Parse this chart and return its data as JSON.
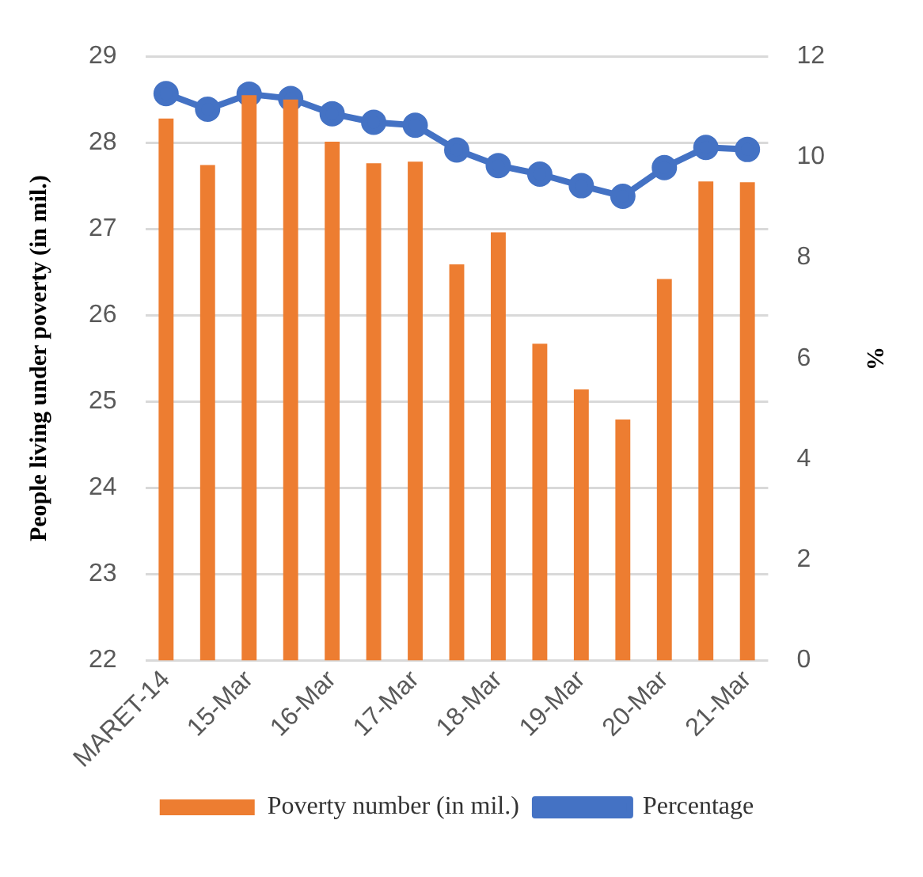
{
  "chart_data": {
    "type": "bar",
    "ylabel": "People living under poverty (in mil.)",
    "y2label": "%",
    "categories": [
      "MARET-14",
      null,
      "15-Mar",
      null,
      "16-Mar",
      null,
      "17-Mar",
      null,
      "18-Mar",
      null,
      "19-Mar",
      null,
      "20-Mar",
      null,
      "21-Mar"
    ],
    "series": [
      {
        "name": "Poverty number (in mil.)",
        "color": "#ed7d31",
        "values": [
          28.28,
          27.74,
          28.55,
          28.5,
          28.01,
          27.76,
          27.78,
          26.59,
          26.96,
          25.67,
          25.14,
          24.79,
          26.42,
          27.55,
          27.54
        ]
      },
      {
        "name": "Percentage",
        "type": "line",
        "axis": "y2",
        "color": "#4472c4",
        "values": [
          11.26,
          10.95,
          11.25,
          11.16,
          10.86,
          10.69,
          10.63,
          10.14,
          9.83,
          9.66,
          9.43,
          9.22,
          9.79,
          10.19,
          10.15
        ]
      }
    ],
    "ylim": [
      22,
      29
    ],
    "yticks": [
      22,
      23,
      24,
      25,
      26,
      27,
      28,
      29
    ],
    "y2lim": [
      0,
      12
    ],
    "y2ticks": [
      0,
      2,
      4,
      6,
      8,
      10,
      12
    ],
    "grid": "y",
    "legend": "bottom",
    "marker": "circle",
    "line_style": "solid"
  }
}
